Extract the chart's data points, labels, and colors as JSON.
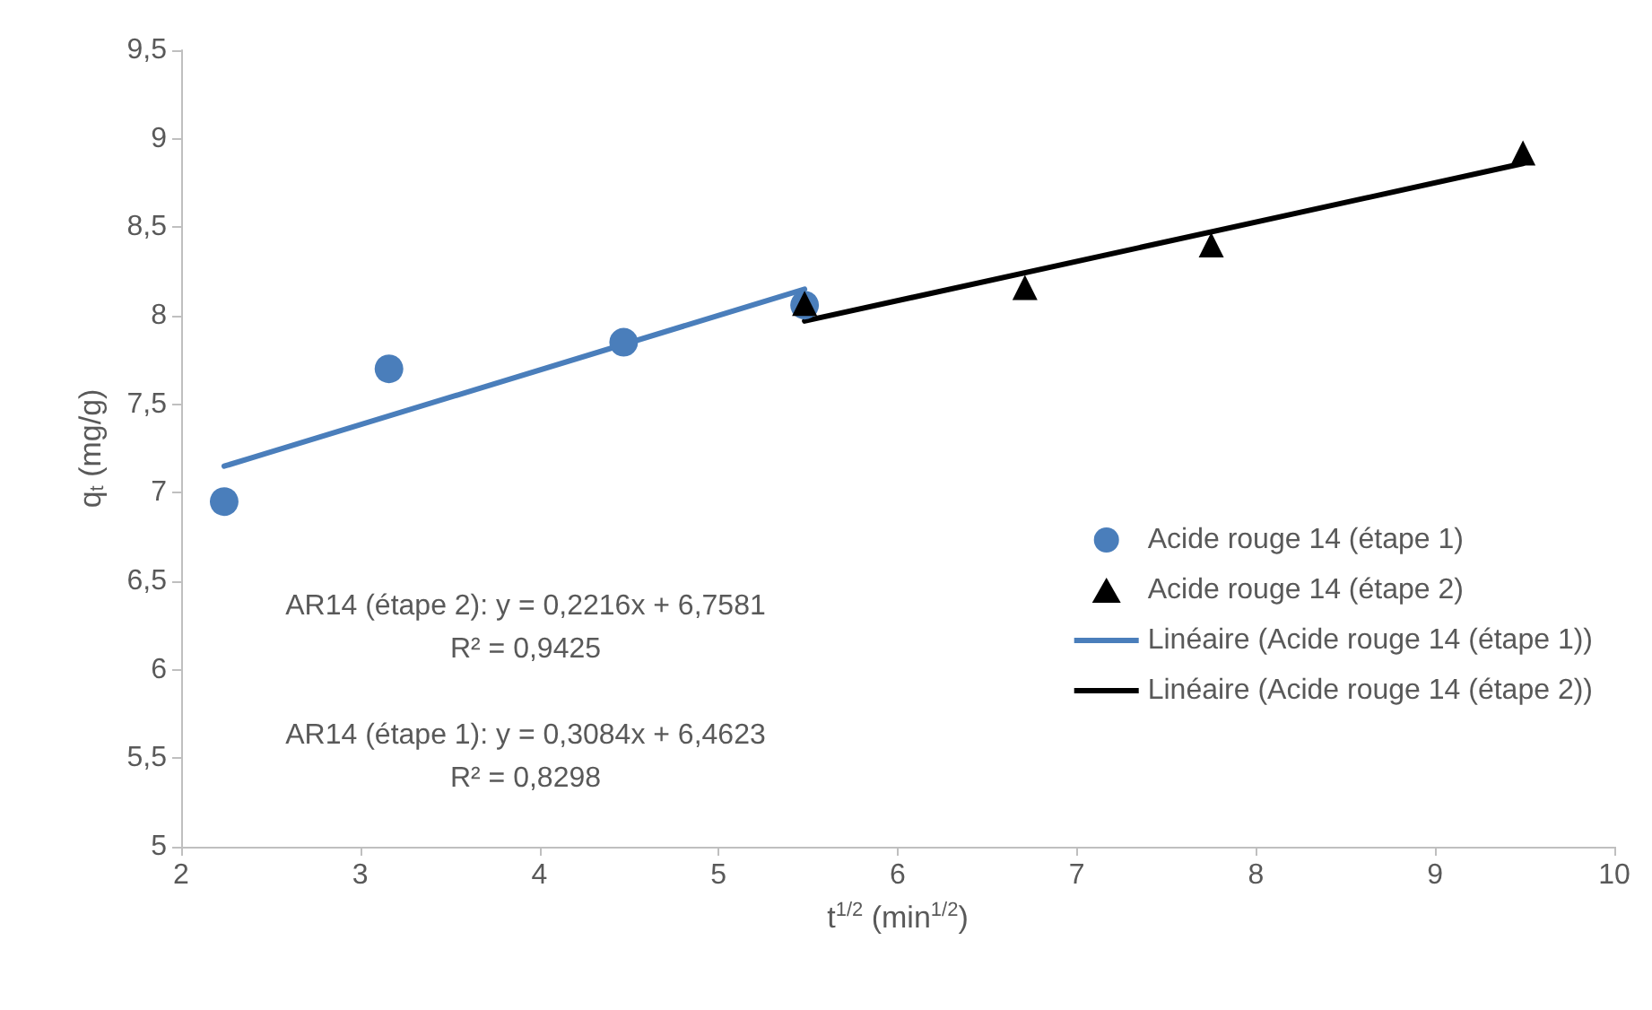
{
  "chart_data": {
    "type": "scatter",
    "xlabel": "t$^{1/2}$ (min$^{1/2}$)",
    "ylabel": "q$_{t}$ (mg/g)",
    "xlim": [
      2,
      10
    ],
    "xticks": [
      2,
      3,
      4,
      5,
      6,
      7,
      8,
      9,
      10
    ],
    "ylim": [
      5,
      9.5
    ],
    "yticks": [
      5,
      {
        "value": 5.5,
        "label": "5,5"
      },
      6,
      {
        "value": 6.5,
        "label": "6,5"
      },
      7,
      {
        "value": 7.5,
        "label": "7,5"
      },
      8,
      {
        "value": 8.5,
        "label": "8,5"
      },
      9,
      {
        "value": 9.5,
        "label": "9,5"
      }
    ],
    "grid": false,
    "legend": "right",
    "annotations": [
      "AR14 (étape 2): y = 0,2216x + 6,7581\nR² = 0,9425",
      "AR14 (étape 1): y = 0,3084x + 6,4623\nR² = 0,8298"
    ],
    "series": [
      {
        "name": "Acide rouge 14 (étape 1)",
        "marker": "circle",
        "color": "#4a7ebb",
        "x": [
          2.24,
          3.16,
          4.47,
          5.48
        ],
        "values": [
          6.95,
          7.7,
          7.85,
          8.06
        ]
      },
      {
        "name": "Acide rouge 14 (étape 2)",
        "marker": "triangle",
        "color": "#000000",
        "x": [
          5.48,
          6.71,
          7.75,
          9.49
        ],
        "values": [
          8.07,
          8.16,
          8.4,
          8.92
        ]
      },
      {
        "name": "Linéaire (Acide rouge 14 (étape 1))",
        "type": "line",
        "marker": "none",
        "line_style": "solid",
        "color": "#4a7ebb",
        "x": [
          2.24,
          5.48
        ],
        "values": [
          7.15,
          8.15
        ]
      },
      {
        "name": "Linéaire (Acide rouge 14 (étape 2))",
        "type": "line",
        "marker": "none",
        "line_style": "solid",
        "color": "#000000",
        "x": [
          5.48,
          9.49
        ],
        "values": [
          7.97,
          8.86
        ]
      }
    ]
  }
}
